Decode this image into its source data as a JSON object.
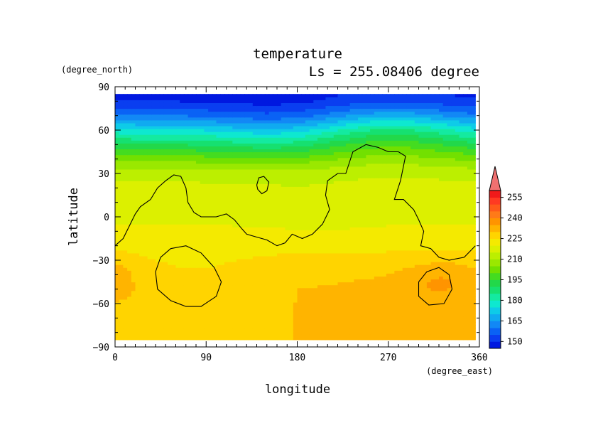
{
  "chart_data": {
    "type": "heatmap",
    "title": "temperature",
    "subtitle": "Ls = 255.08406 degree",
    "xlabel": "longitude",
    "ylabel": "latitude",
    "xunit": "(degree_east)",
    "yunit": "(degree_north)",
    "xlim": [
      0,
      360
    ],
    "ylim": [
      -90,
      90
    ],
    "xticks": [
      0,
      90,
      180,
      270,
      360
    ],
    "xtick_labels": [
      "0",
      "90",
      "180",
      "270",
      "360"
    ],
    "yticks": [
      -90,
      -60,
      -30,
      0,
      30,
      60,
      90
    ],
    "ytick_labels": [
      "−90",
      "−60",
      "−30",
      "0",
      "30",
      "60",
      "90"
    ],
    "colorbar": {
      "levels": [
        145,
        150,
        155,
        160,
        165,
        170,
        175,
        180,
        185,
        190,
        195,
        200,
        205,
        210,
        215,
        220,
        225,
        230,
        235,
        240,
        245,
        250,
        255,
        260
      ],
      "colors": [
        "#0018e0",
        "#0a3ef0",
        "#0a62f5",
        "#1288f5",
        "#10aaf0",
        "#0ecbe8",
        "#0ee8d0",
        "#14eaa0",
        "#16e070",
        "#22d84a",
        "#44dc20",
        "#72e000",
        "#9ae800",
        "#bcef00",
        "#dcf000",
        "#f4ea00",
        "#ffd400",
        "#ffb400",
        "#ff9400",
        "#ff7a18",
        "#ff5a1a",
        "#ff3a22",
        "#f01a1a"
      ],
      "tick_values": [
        150,
        165,
        180,
        195,
        210,
        225,
        240,
        255
      ],
      "tick_labels": [
        "150",
        "165",
        "180",
        "195",
        "210",
        "225",
        "240",
        "255"
      ],
      "extend_max_color": "#f07070"
    },
    "field": {
      "profile_lats": [
        85,
        80,
        75,
        70,
        65,
        60,
        55,
        50,
        45,
        40,
        35,
        30,
        25,
        20,
        15,
        10,
        5,
        0,
        -5,
        -10,
        -15,
        -20,
        -25,
        -30,
        -35,
        -40,
        -45,
        -50,
        -55,
        -60,
        -65,
        -70,
        -75,
        -80,
        -85
      ],
      "profile_temps": [
        149,
        151,
        156,
        162,
        170,
        178,
        185,
        192,
        198,
        204,
        209,
        213,
        215,
        216,
        217,
        218,
        218.5,
        219,
        220,
        221,
        222,
        223,
        225,
        226,
        227,
        228,
        229,
        230,
        230,
        230,
        230,
        230,
        230,
        230,
        230
      ],
      "data_lat_range": [
        -85,
        85
      ],
      "data_lon_range": [
        0,
        356
      ]
    },
    "contour_line_color": "#000000"
  }
}
